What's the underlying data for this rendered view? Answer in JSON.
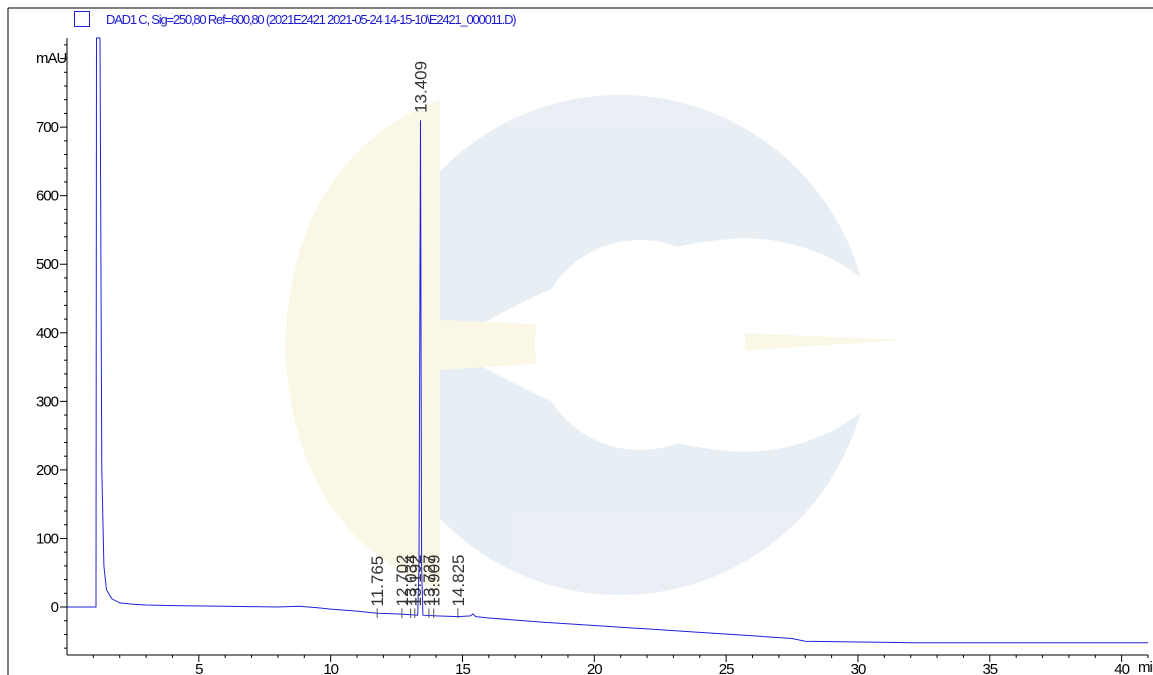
{
  "legend": {
    "label": "DAD1 C, Sig=250,80 Ref=600,80 (2021E2421 2021-05-24 14-15-10\\E2421_000011.D)",
    "color": "#2020e0"
  },
  "chart_data": {
    "type": "line",
    "title": "",
    "ylabel": "mAU",
    "xlabel": "min",
    "xlim": [
      0,
      41
    ],
    "ylim": [
      -70,
      830
    ],
    "x_ticks": [
      5,
      10,
      15,
      20,
      25,
      30,
      35,
      40
    ],
    "y_ticks": [
      0,
      100,
      200,
      300,
      400,
      500,
      600,
      700
    ],
    "x_tick_labels": [
      "5",
      "10",
      "15",
      "20",
      "25",
      "30",
      "35",
      "40"
    ],
    "y_tick_labels": [
      "0",
      "100",
      "200",
      "300",
      "400",
      "500",
      "600",
      "700"
    ],
    "series": [
      {
        "color": "#2020e0",
        "points": [
          [
            0,
            0
          ],
          [
            1.1,
            0
          ],
          [
            1.12,
            830
          ],
          [
            1.25,
            830
          ],
          [
            1.32,
            200
          ],
          [
            1.4,
            60
          ],
          [
            1.5,
            25
          ],
          [
            1.7,
            12
          ],
          [
            2,
            6
          ],
          [
            2.5,
            4
          ],
          [
            3,
            3
          ],
          [
            4,
            2
          ],
          [
            6,
            1
          ],
          [
            8,
            0
          ],
          [
            8.8,
            1
          ],
          [
            9.5,
            -1
          ],
          [
            10,
            -3
          ],
          [
            11,
            -6
          ],
          [
            11.765,
            -9
          ],
          [
            12.5,
            -10
          ],
          [
            13,
            -11
          ],
          [
            13.3,
            -12
          ],
          [
            13.35,
            60
          ],
          [
            13.409,
            710
          ],
          [
            13.45,
            60
          ],
          [
            13.5,
            -12
          ],
          [
            14,
            -13
          ],
          [
            14.825,
            -14
          ],
          [
            15.3,
            -13
          ],
          [
            15.4,
            -10
          ],
          [
            15.5,
            -14
          ],
          [
            16,
            -16
          ],
          [
            18,
            -22
          ],
          [
            20,
            -27
          ],
          [
            22,
            -32
          ],
          [
            24,
            -37
          ],
          [
            26,
            -42
          ],
          [
            27.5,
            -46
          ],
          [
            28,
            -50
          ],
          [
            30,
            -51
          ],
          [
            32,
            -52
          ],
          [
            35,
            -52
          ],
          [
            38,
            -52
          ],
          [
            41,
            -52
          ]
        ]
      }
    ],
    "peak_labels": [
      {
        "x": 11.765,
        "label": "11.765"
      },
      {
        "x": 12.702,
        "label": "12.702"
      },
      {
        "x": 13.034,
        "label": "13.034"
      },
      {
        "x": 13.192,
        "label": "13.192"
      },
      {
        "x": 13.409,
        "label": "13.409"
      },
      {
        "x": 13.727,
        "label": "13.727"
      },
      {
        "x": 13.909,
        "label": "13.909"
      },
      {
        "x": 14.825,
        "label": "14.825"
      }
    ],
    "grid": false
  }
}
